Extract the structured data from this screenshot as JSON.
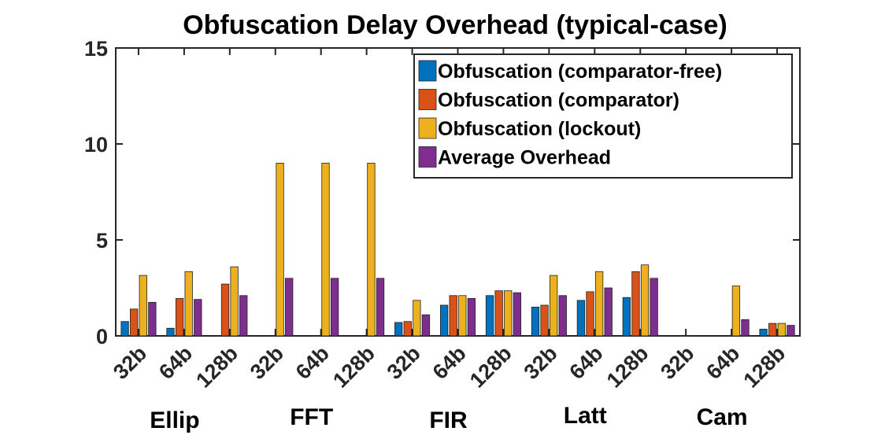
{
  "chart_data": {
    "type": "bar",
    "title": "Obfuscation Delay Overhead (typical-case)",
    "xlabel": "",
    "ylabel": "",
    "ylim": [
      0,
      15
    ],
    "yticks": [
      0,
      5,
      10,
      15
    ],
    "grid": false,
    "legend_position": "top-right",
    "categories": [
      "32b",
      "64b",
      "128b",
      "32b",
      "64b",
      "128b",
      "32b",
      "64b",
      "128b",
      "32b",
      "64b",
      "128b",
      "32b",
      "64b",
      "128b"
    ],
    "groups": [
      {
        "label": "Ellip",
        "start": 0,
        "end": 2
      },
      {
        "label": "FFT",
        "start": 3,
        "end": 5
      },
      {
        "label": "FIR",
        "start": 6,
        "end": 8
      },
      {
        "label": "Latt",
        "start": 9,
        "end": 11
      },
      {
        "label": "Cam",
        "start": 12,
        "end": 14
      }
    ],
    "series": [
      {
        "name": "Obfuscation (comparator-free)",
        "color": "#0072BD",
        "values": [
          0.75,
          0.4,
          0,
          0,
          0,
          0,
          0.7,
          1.6,
          2.1,
          1.5,
          1.85,
          2.0,
          0,
          0,
          0.35
        ]
      },
      {
        "name": "Obfuscation (comparator)",
        "color": "#D95319",
        "values": [
          1.4,
          1.95,
          2.7,
          0,
          0,
          0,
          0.75,
          2.1,
          2.35,
          1.6,
          2.3,
          3.35,
          0,
          0,
          0.65
        ]
      },
      {
        "name": "Obfuscation (lockout)",
        "color": "#EDB120",
        "values": [
          3.15,
          3.35,
          3.6,
          9.0,
          9.0,
          9.0,
          1.85,
          2.1,
          2.35,
          3.15,
          3.35,
          3.7,
          0,
          2.6,
          0.65
        ]
      },
      {
        "name": "Average Overhead",
        "color": "#7E2F8E",
        "values": [
          1.75,
          1.9,
          2.1,
          3.0,
          3.0,
          3.0,
          1.1,
          1.95,
          2.25,
          2.1,
          2.5,
          3.0,
          0,
          0.85,
          0.55
        ]
      }
    ]
  }
}
